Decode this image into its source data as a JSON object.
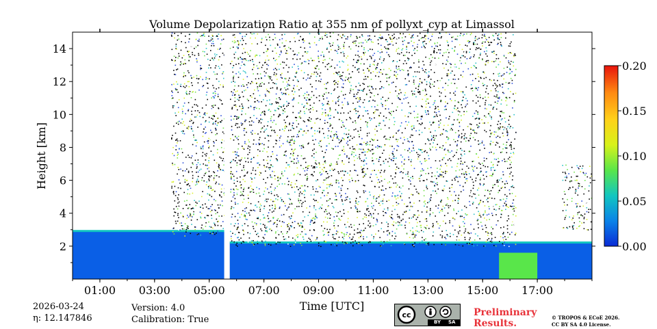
{
  "chart_data": {
    "type": "heatmap",
    "title": "Volume Depolarization Ratio at 355 nm of pollyxt_cyp at Limassol",
    "xlabel": "Time [UTC]",
    "ylabel": "Height [km]",
    "xlim_hours": [
      0,
      19
    ],
    "ylim": [
      0,
      15
    ],
    "x_ticks": [
      {
        "hour": 1,
        "label": "01:00"
      },
      {
        "hour": 3,
        "label": "03:00"
      },
      {
        "hour": 5,
        "label": "05:00"
      },
      {
        "hour": 7,
        "label": "07:00"
      },
      {
        "hour": 9,
        "label": "09:00"
      },
      {
        "hour": 11,
        "label": "11:00"
      },
      {
        "hour": 13,
        "label": "13:00"
      },
      {
        "hour": 15,
        "label": "15:00"
      },
      {
        "hour": 17,
        "label": "17:00"
      }
    ],
    "y_ticks": [
      {
        "value": 2,
        "label": "2"
      },
      {
        "value": 4,
        "label": "4"
      },
      {
        "value": 6,
        "label": "6"
      },
      {
        "value": 8,
        "label": "8"
      },
      {
        "value": 10,
        "label": "10"
      },
      {
        "value": 12,
        "label": "12"
      },
      {
        "value": 14,
        "label": "14"
      }
    ],
    "colorbar": {
      "range": [
        0.0,
        0.2
      ],
      "ticks": [
        {
          "value": 0.0,
          "label": "0.00"
        },
        {
          "value": 0.05,
          "label": "0.05"
        },
        {
          "value": 0.1,
          "label": "0.10"
        },
        {
          "value": 0.15,
          "label": "0.15"
        },
        {
          "value": 0.2,
          "label": "0.20"
        }
      ],
      "colors": [
        "#0a2bd6",
        "#0a83e8",
        "#12c6c0",
        "#59e64a",
        "#d7f21a",
        "#ffd21a",
        "#ff8a12",
        "#e8140c"
      ]
    },
    "regions": [
      {
        "kind": "boundary_layer",
        "t0": 0,
        "t1": 5.55,
        "top_km": 2.9,
        "value": 0.015
      },
      {
        "kind": "noise",
        "t0": 3.6,
        "t1": 5.55,
        "bottom_km": 2.6,
        "top_km": 15,
        "value": 0.05
      },
      {
        "kind": "data_gap",
        "t0": 5.55,
        "t1": 5.75
      },
      {
        "kind": "boundary_layer",
        "t0": 5.75,
        "t1": 19,
        "top_km": 2.2,
        "value": 0.015
      },
      {
        "kind": "noise",
        "t0": 5.75,
        "t1": 16.2,
        "bottom_km": 2.0,
        "top_km": 15,
        "value": 0.05
      },
      {
        "kind": "dust_layer",
        "t0": 15.6,
        "t1": 17.0,
        "bottom_km": 0.0,
        "top_km": 1.6,
        "value": 0.09
      },
      {
        "kind": "noise",
        "t0": 17.9,
        "t1": 19,
        "bottom_km": 3.0,
        "top_km": 7.0,
        "value": 0.05
      }
    ]
  },
  "footer": {
    "date": "2026-03-24",
    "eta": "η: 12.147846",
    "version": "Version: 4.0",
    "calibration": "Calibration: True",
    "preliminary_line1": "Preliminary",
    "preliminary_line2": "Results.",
    "copyright_line1": "© TROPOS & ECoE 2026.",
    "copyright_line2": "CC BY SA 4.0 License.",
    "license_by": "BY",
    "license_sa": "SA"
  }
}
